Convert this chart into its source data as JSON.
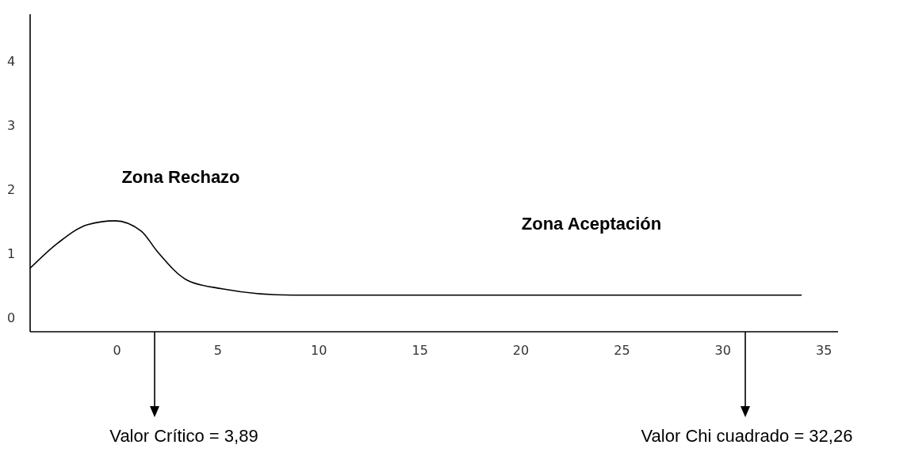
{
  "chart_data": {
    "type": "line",
    "x": [
      -4.3,
      -2.9,
      -1.45,
      -0.1,
      1.2,
      2.0,
      3.5,
      5.2,
      8.7,
      11.6,
      20,
      33.9
    ],
    "series": [
      {
        "color": "#000000",
        "values": [
          0.79,
          1.19,
          1.47,
          1.53,
          1.37,
          1.05,
          0.6,
          0.47,
          0.37,
          0.37,
          0.37,
          0.37
        ]
      }
    ],
    "xlim": [
      -4.3,
      35.7
    ],
    "ylim": [
      -0.2,
      4.75
    ],
    "xticks": [
      0,
      5,
      10,
      15,
      20,
      25,
      30,
      35
    ],
    "yticks": [
      0,
      1,
      2,
      3,
      4
    ],
    "grid": false,
    "marker": "none",
    "line_style": "solid",
    "annotations": [
      "Zona Rechazo",
      "Zona Aceptación",
      "Valor Crítico = 3,89",
      "Valor Chi cuadrado = 32,26"
    ]
  }
}
